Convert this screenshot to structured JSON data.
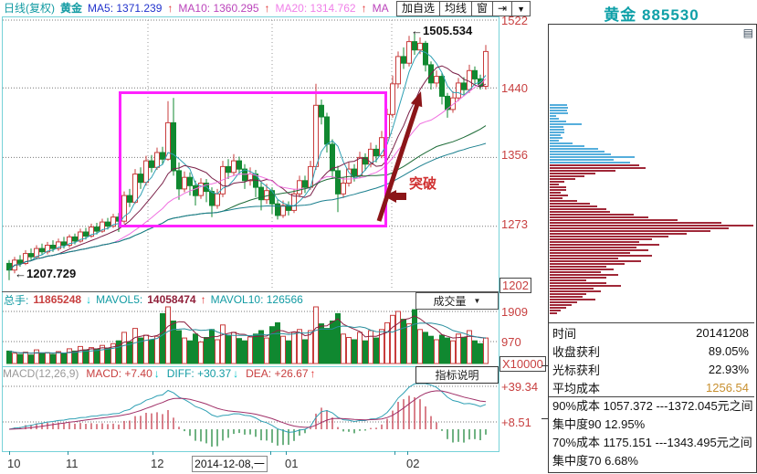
{
  "header": {
    "period": "日线(复权)",
    "symbol": "黄金",
    "ma5": "MA5: 1371.239",
    "ma10": "MA10: 1360.295",
    "ma20": "MA20: 1314.762",
    "ma_more": "MA",
    "btn_add": "加自选",
    "btn_ma": "均线",
    "btn_win": "窗"
  },
  "icons": {
    "up": "↑",
    "down": "↓",
    "left": "←",
    "caret": "▼",
    "next": "⇥",
    "panel_menu": "▤"
  },
  "annotations": {
    "high": "1505.534",
    "low": "1207.729",
    "breakout": "突破"
  },
  "volume_panel": {
    "label": "总手:",
    "value": "11865248",
    "mavol5_label": "MAVOL5:",
    "mavol5_value": "14058474",
    "mavol10": "MAVOL10: 126566",
    "selector": "成交量"
  },
  "macd_panel": {
    "params": "MACD(12,26,9)",
    "macd": "MACD: +7.40",
    "diff": "DIFF: +30.37",
    "dea": "DEA: +26.67",
    "help": "指标说明",
    "axis": [
      "+39.34",
      "+8.51"
    ]
  },
  "y_axis": [
    "1522",
    "1440",
    "1356",
    "1273",
    "1202"
  ],
  "vol_axis": [
    "1909",
    "970",
    "X10000"
  ],
  "x_axis": {
    "m10": "10",
    "m11": "11",
    "m12": "12",
    "date": "2014-12-08,一",
    "m01": "01",
    "m02": "02"
  },
  "right_panel": {
    "title": "黄金 885530",
    "stats": [
      {
        "label": "时间",
        "value": "20141208"
      },
      {
        "label": "收盘获利",
        "value": "89.05%"
      },
      {
        "label": "光标获利",
        "value": "22.93%"
      },
      {
        "label": "平均成本",
        "value": "1256.54"
      }
    ],
    "cost_lines": [
      "90%成本 1057.372 ---1372.045元之间",
      "集中度90  12.95%",
      "70%成本 1175.151 ---1343.495元之间",
      "集中度70   6.68%"
    ]
  },
  "colors": {
    "up": "#C83C3C",
    "down": "#108830",
    "ma5": "#2FA0B4",
    "ma10": "#7A2048",
    "ma20": "#F070E0",
    "ma40": "#1E6C38",
    "ma60": "#1A7F8E",
    "volma5": "#8B2040",
    "volma10": "#2A8F9E",
    "macd_pos": "#C03040",
    "macd_neg": "#0F7F2F",
    "diff": "#2FA0B4",
    "dea": "#A03068",
    "dist_blue": "#55AEDC",
    "dist_red": "#A02838",
    "grid": "#777",
    "vgrid": "#999",
    "arrow": "#8B1518"
  },
  "chart_data": {
    "type": "candlestick",
    "title": "黄金 日线(复权)",
    "price_labels": [
      1522,
      1440,
      1356,
      1273,
      1202
    ],
    "x_labels": [
      "10",
      "11",
      "12",
      "2014-12-08,一",
      "01",
      "02"
    ],
    "high_annotation": 1505.534,
    "low_annotation": 1207.729,
    "candles": [
      [
        1228,
        1220,
        1232,
        1207.7
      ],
      [
        1220,
        1232,
        1236,
        1216
      ],
      [
        1232,
        1228,
        1238,
        1224
      ],
      [
        1228,
        1240,
        1244,
        1226
      ],
      [
        1240,
        1236,
        1246,
        1232
      ],
      [
        1236,
        1246,
        1250,
        1234
      ],
      [
        1246,
        1242,
        1252,
        1238
      ],
      [
        1242,
        1250,
        1254,
        1239
      ],
      [
        1250,
        1246,
        1256,
        1242
      ],
      [
        1246,
        1254,
        1258,
        1243
      ],
      [
        1254,
        1250,
        1260,
        1246
      ],
      [
        1250,
        1260,
        1263,
        1247
      ],
      [
        1260,
        1255,
        1264,
        1251
      ],
      [
        1255,
        1266,
        1270,
        1253
      ],
      [
        1266,
        1261,
        1271,
        1257
      ],
      [
        1261,
        1272,
        1276,
        1259
      ],
      [
        1272,
        1267,
        1277,
        1263
      ],
      [
        1267,
        1278,
        1282,
        1265
      ],
      [
        1278,
        1273,
        1283,
        1269
      ],
      [
        1273,
        1284,
        1288,
        1271
      ],
      [
        1284,
        1279,
        1289,
        1266
      ],
      [
        1279,
        1310,
        1315,
        1276
      ],
      [
        1310,
        1302,
        1318,
        1296
      ],
      [
        1302,
        1336,
        1342,
        1300
      ],
      [
        1336,
        1326,
        1344,
        1318
      ],
      [
        1326,
        1352,
        1358,
        1322
      ],
      [
        1352,
        1344,
        1359,
        1338
      ],
      [
        1344,
        1362,
        1368,
        1341
      ],
      [
        1362,
        1354,
        1369,
        1348
      ],
      [
        1354,
        1398,
        1424,
        1352
      ],
      [
        1398,
        1340,
        1428,
        1334
      ],
      [
        1340,
        1318,
        1350,
        1305
      ],
      [
        1318,
        1332,
        1339,
        1314
      ],
      [
        1332,
        1322,
        1338,
        1310
      ],
      [
        1322,
        1310,
        1328,
        1298
      ],
      [
        1310,
        1325,
        1331,
        1306
      ],
      [
        1325,
        1315,
        1330,
        1302
      ],
      [
        1315,
        1298,
        1320,
        1284
      ],
      [
        1298,
        1312,
        1318,
        1294
      ],
      [
        1312,
        1345,
        1352,
        1308
      ],
      [
        1345,
        1338,
        1354,
        1330
      ],
      [
        1338,
        1352,
        1360,
        1334
      ],
      [
        1352,
        1342,
        1357,
        1335
      ],
      [
        1342,
        1328,
        1348,
        1318
      ],
      [
        1328,
        1336,
        1344,
        1322
      ],
      [
        1336,
        1320,
        1341,
        1308
      ],
      [
        1320,
        1305,
        1326,
        1292
      ],
      [
        1305,
        1316,
        1324,
        1300
      ],
      [
        1316,
        1300,
        1320,
        1288
      ],
      [
        1300,
        1286,
        1305,
        1281
      ],
      [
        1286,
        1298,
        1304,
        1283
      ],
      [
        1298,
        1292,
        1303,
        1286
      ],
      [
        1292,
        1312,
        1318,
        1289
      ],
      [
        1312,
        1328,
        1334,
        1308
      ],
      [
        1328,
        1320,
        1334,
        1313
      ],
      [
        1320,
        1345,
        1352,
        1317
      ],
      [
        1345,
        1419,
        1445,
        1341
      ],
      [
        1419,
        1405,
        1426,
        1396
      ],
      [
        1405,
        1372,
        1410,
        1362
      ],
      [
        1372,
        1340,
        1378,
        1330
      ],
      [
        1340,
        1312,
        1346,
        1290
      ],
      [
        1312,
        1325,
        1332,
        1307
      ],
      [
        1325,
        1342,
        1350,
        1321
      ],
      [
        1342,
        1334,
        1348,
        1327
      ],
      [
        1334,
        1356,
        1363,
        1331
      ],
      [
        1356,
        1348,
        1361,
        1340
      ],
      [
        1348,
        1366,
        1374,
        1344
      ],
      [
        1366,
        1358,
        1371,
        1350
      ],
      [
        1358,
        1380,
        1388,
        1355
      ],
      [
        1380,
        1408,
        1415,
        1376
      ],
      [
        1408,
        1445,
        1455,
        1404
      ],
      [
        1445,
        1478,
        1484,
        1440
      ],
      [
        1478,
        1470,
        1489,
        1463
      ],
      [
        1470,
        1496,
        1503,
        1466
      ],
      [
        1496,
        1486,
        1505.53,
        1480
      ],
      [
        1486,
        1494,
        1501,
        1481
      ],
      [
        1494,
        1468,
        1497,
        1460
      ],
      [
        1468,
        1446,
        1472,
        1438
      ],
      [
        1446,
        1454,
        1461,
        1441
      ],
      [
        1454,
        1430,
        1458,
        1420
      ],
      [
        1430,
        1414,
        1434,
        1404
      ],
      [
        1414,
        1428,
        1436,
        1410
      ],
      [
        1428,
        1446,
        1452,
        1424
      ],
      [
        1446,
        1438,
        1453,
        1430
      ],
      [
        1438,
        1461,
        1468,
        1434
      ],
      [
        1461,
        1451,
        1466,
        1444
      ],
      [
        1451,
        1442,
        1456,
        1438
      ],
      [
        1442,
        1484,
        1492,
        1438
      ]
    ],
    "volumes": [
      22,
      18,
      16,
      20,
      15,
      24,
      17,
      19,
      16,
      21,
      18,
      26,
      22,
      30,
      24,
      28,
      25,
      32,
      27,
      35,
      40,
      55,
      38,
      62,
      45,
      50,
      42,
      48,
      88,
      100,
      75,
      58,
      45,
      40,
      52,
      38,
      46,
      60,
      42,
      68,
      50,
      55,
      44,
      40,
      47,
      52,
      58,
      45,
      65,
      72,
      48,
      40,
      55,
      60,
      42,
      58,
      100,
      70,
      62,
      75,
      88,
      52,
      46,
      42,
      55,
      40,
      58,
      45,
      60,
      72,
      85,
      92,
      78,
      70,
      95,
      60,
      55,
      48,
      42,
      50,
      45,
      40,
      52,
      46,
      58,
      40,
      35,
      45
    ],
    "distribution": {
      "blue": [
        19,
        20,
        19,
        20,
        7,
        10,
        18,
        35,
        15,
        16,
        16,
        12,
        14,
        10,
        25,
        38,
        53,
        60,
        67,
        93,
        70,
        88
      ],
      "red": [
        98,
        105,
        72,
        50,
        38,
        28,
        16,
        10,
        18,
        18,
        12,
        20,
        14,
        30,
        44,
        52,
        62,
        66,
        92,
        108,
        140,
        188,
        230,
        196,
        176,
        150,
        130,
        112,
        98,
        120,
        95,
        108,
        88,
        112,
        75,
        100,
        82,
        62,
        70,
        56,
        75,
        62,
        40,
        62,
        78,
        48,
        56,
        40,
        36,
        50,
        30,
        24,
        18,
        12,
        8
      ]
    }
  }
}
